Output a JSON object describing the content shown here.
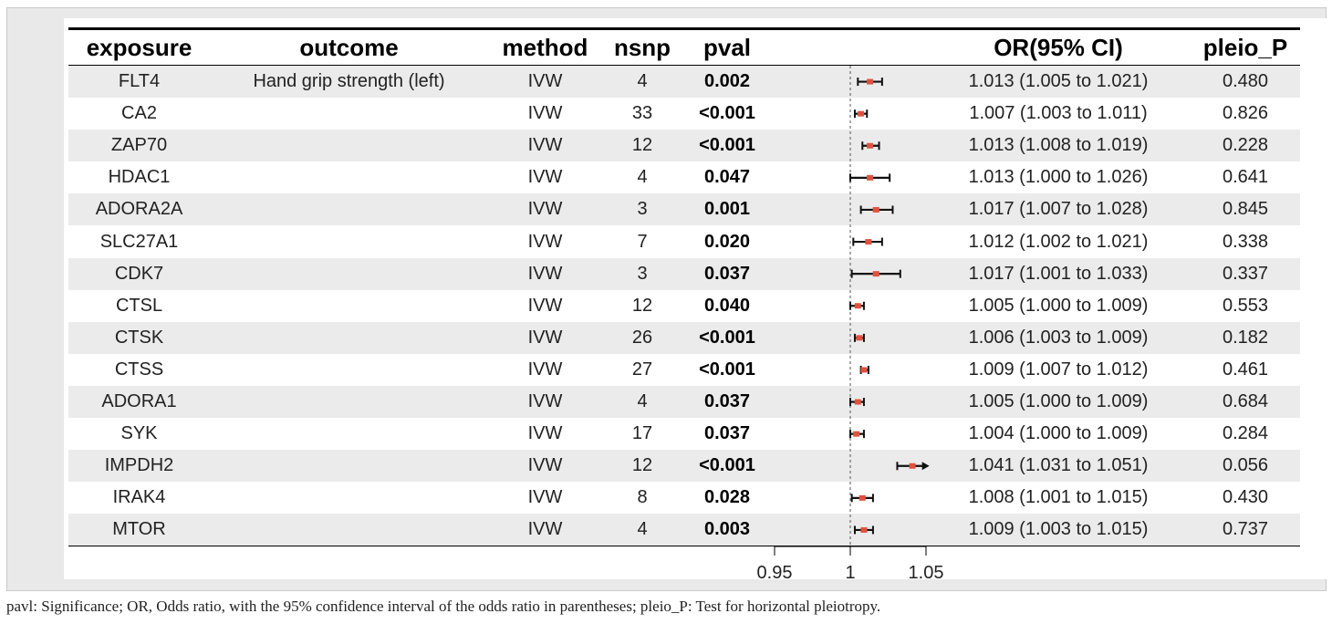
{
  "headers": {
    "exposure": "exposure",
    "outcome": "outcome",
    "method": "method",
    "nsnp": "nsnp",
    "pval": "pval",
    "or": "OR(95% CI)",
    "pleio": "pleio_P"
  },
  "rows": [
    {
      "exposure": "FLT4",
      "outcome": "Hand grip strength (left)",
      "method": "IVW",
      "nsnp": "4",
      "pval": "0.002",
      "or_text": "1.013 (1.005 to 1.021)",
      "pleio": "0.480"
    },
    {
      "exposure": "CA2",
      "outcome": "",
      "method": "IVW",
      "nsnp": "33",
      "pval": "<0.001",
      "or_text": "1.007 (1.003 to 1.011)",
      "pleio": "0.826"
    },
    {
      "exposure": "ZAP70",
      "outcome": "",
      "method": "IVW",
      "nsnp": "12",
      "pval": "<0.001",
      "or_text": "1.013 (1.008 to 1.019)",
      "pleio": "0.228"
    },
    {
      "exposure": "HDAC1",
      "outcome": "",
      "method": "IVW",
      "nsnp": "4",
      "pval": "0.047",
      "or_text": "1.013 (1.000 to 1.026)",
      "pleio": "0.641"
    },
    {
      "exposure": "ADORA2A",
      "outcome": "",
      "method": "IVW",
      "nsnp": "3",
      "pval": "0.001",
      "or_text": "1.017 (1.007 to 1.028)",
      "pleio": "0.845"
    },
    {
      "exposure": "SLC27A1",
      "outcome": "",
      "method": "IVW",
      "nsnp": "7",
      "pval": "0.020",
      "or_text": "1.012 (1.002 to 1.021)",
      "pleio": "0.338"
    },
    {
      "exposure": "CDK7",
      "outcome": "",
      "method": "IVW",
      "nsnp": "3",
      "pval": "0.037",
      "or_text": "1.017 (1.001 to 1.033)",
      "pleio": "0.337"
    },
    {
      "exposure": "CTSL",
      "outcome": "",
      "method": "IVW",
      "nsnp": "12",
      "pval": "0.040",
      "or_text": "1.005 (1.000 to 1.009)",
      "pleio": "0.553"
    },
    {
      "exposure": "CTSK",
      "outcome": "",
      "method": "IVW",
      "nsnp": "26",
      "pval": "<0.001",
      "or_text": "1.006 (1.003 to 1.009)",
      "pleio": "0.182"
    },
    {
      "exposure": "CTSS",
      "outcome": "",
      "method": "IVW",
      "nsnp": "27",
      "pval": "<0.001",
      "or_text": "1.009 (1.007 to 1.012)",
      "pleio": "0.461"
    },
    {
      "exposure": "ADORA1",
      "outcome": "",
      "method": "IVW",
      "nsnp": "4",
      "pval": "0.037",
      "or_text": "1.005 (1.000 to 1.009)",
      "pleio": "0.684"
    },
    {
      "exposure": "SYK",
      "outcome": "",
      "method": "IVW",
      "nsnp": "17",
      "pval": "0.037",
      "or_text": "1.004 (1.000 to 1.009)",
      "pleio": "0.284"
    },
    {
      "exposure": "IMPDH2",
      "outcome": "",
      "method": "IVW",
      "nsnp": "12",
      "pval": "<0.001",
      "or_text": "1.041 (1.031 to 1.051)",
      "pleio": "0.056"
    },
    {
      "exposure": "IRAK4",
      "outcome": "",
      "method": "IVW",
      "nsnp": "8",
      "pval": "0.028",
      "or_text": "1.008 (1.001 to 1.015)",
      "pleio": "0.430"
    },
    {
      "exposure": "MTOR",
      "outcome": "",
      "method": "IVW",
      "nsnp": "4",
      "pval": "0.003",
      "or_text": "1.009 (1.003 to 1.015)",
      "pleio": "0.737"
    }
  ],
  "chart_data": {
    "type": "forest",
    "reference_line": 1,
    "xlim": [
      0.95,
      1.05
    ],
    "ticks": [
      "0.95",
      "1",
      "1.05"
    ],
    "point_color": "#e0523f",
    "series": [
      {
        "label": "FLT4",
        "or": 1.013,
        "lo": 1.005,
        "hi": 1.021
      },
      {
        "label": "CA2",
        "or": 1.007,
        "lo": 1.003,
        "hi": 1.011
      },
      {
        "label": "ZAP70",
        "or": 1.013,
        "lo": 1.008,
        "hi": 1.019
      },
      {
        "label": "HDAC1",
        "or": 1.013,
        "lo": 1.0,
        "hi": 1.026
      },
      {
        "label": "ADORA2A",
        "or": 1.017,
        "lo": 1.007,
        "hi": 1.028
      },
      {
        "label": "SLC27A1",
        "or": 1.012,
        "lo": 1.002,
        "hi": 1.021
      },
      {
        "label": "CDK7",
        "or": 1.017,
        "lo": 1.001,
        "hi": 1.033
      },
      {
        "label": "CTSL",
        "or": 1.005,
        "lo": 1.0,
        "hi": 1.009
      },
      {
        "label": "CTSK",
        "or": 1.006,
        "lo": 1.003,
        "hi": 1.009
      },
      {
        "label": "CTSS",
        "or": 1.009,
        "lo": 1.007,
        "hi": 1.012
      },
      {
        "label": "ADORA1",
        "or": 1.005,
        "lo": 1.0,
        "hi": 1.009
      },
      {
        "label": "SYK",
        "or": 1.004,
        "lo": 1.0,
        "hi": 1.009
      },
      {
        "label": "IMPDH2",
        "or": 1.041,
        "lo": 1.031,
        "hi": 1.051,
        "arrow_right": true
      },
      {
        "label": "IRAK4",
        "or": 1.008,
        "lo": 1.001,
        "hi": 1.015
      },
      {
        "label": "MTOR",
        "or": 1.009,
        "lo": 1.003,
        "hi": 1.015
      }
    ]
  },
  "caption": "pavl: Significance; OR, Odds ratio, with the 95% confidence interval of the odds ratio in parentheses; pleio_P: Test for horizontal pleiotropy."
}
